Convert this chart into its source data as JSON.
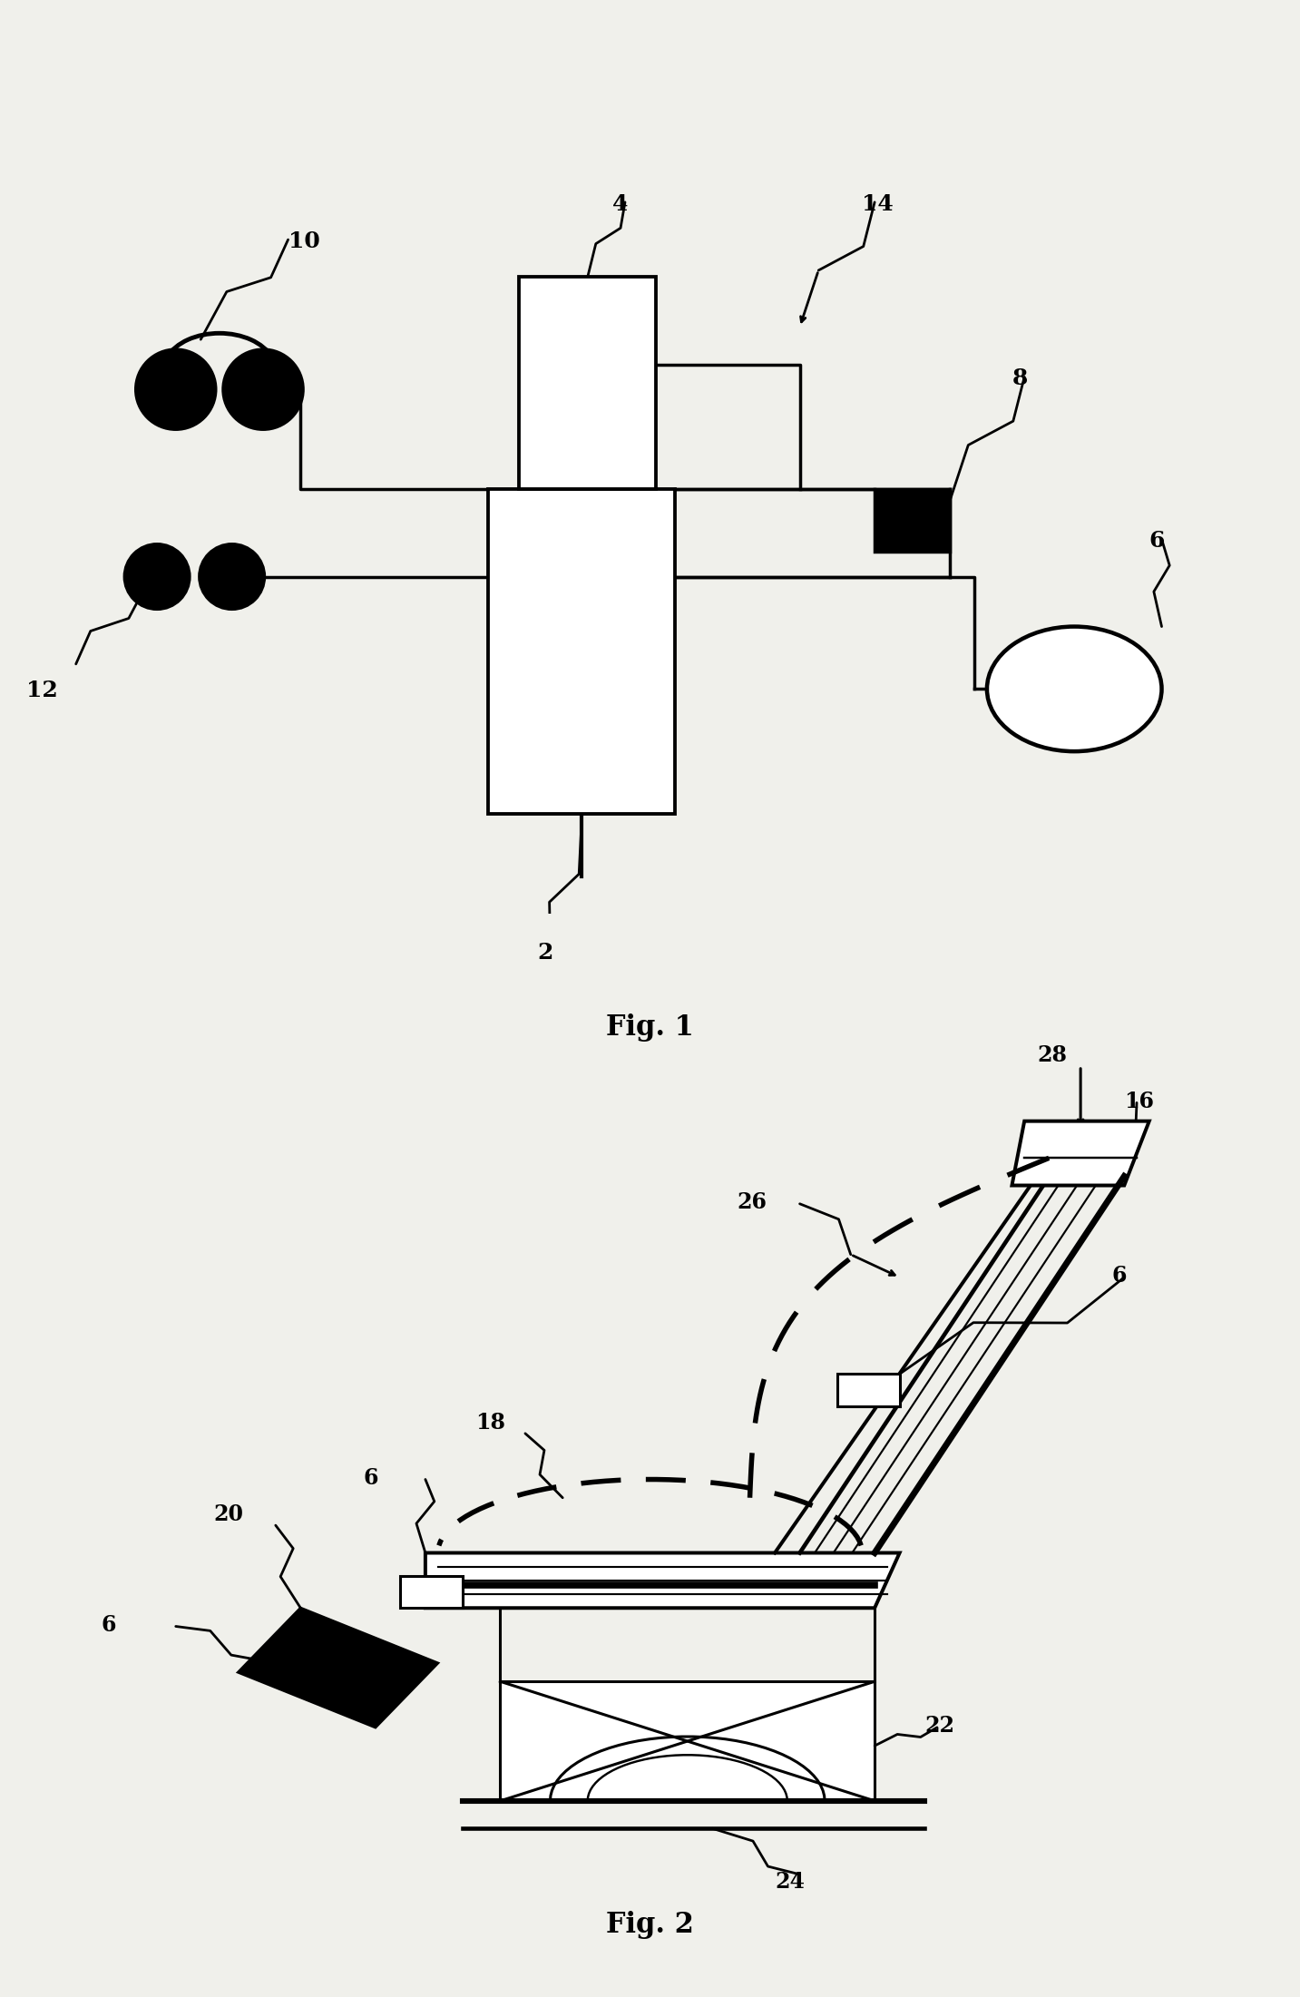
{
  "bg": "#f0f0eb",
  "lc": "#000000",
  "fig1_label": "Fig. 1",
  "fig2_label": "Fig. 2"
}
